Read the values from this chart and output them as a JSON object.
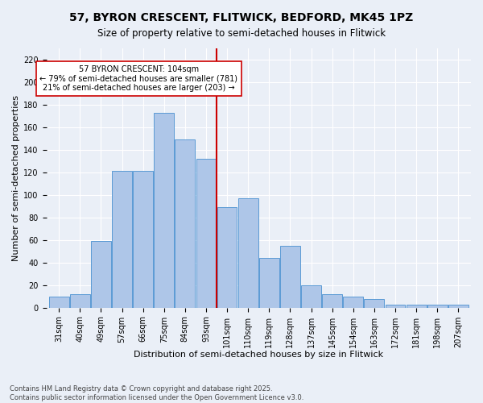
{
  "title": "57, BYRON CRESCENT, FLITWICK, BEDFORD, MK45 1PZ",
  "subtitle": "Size of property relative to semi-detached houses in Flitwick",
  "xlabel": "Distribution of semi-detached houses by size in Flitwick",
  "ylabel": "Number of semi-detached properties",
  "categories": [
    "31sqm",
    "40sqm",
    "49sqm",
    "57sqm",
    "66sqm",
    "75sqm",
    "84sqm",
    "93sqm",
    "101sqm",
    "110sqm",
    "119sqm",
    "128sqm",
    "137sqm",
    "145sqm",
    "154sqm",
    "163sqm",
    "172sqm",
    "181sqm",
    "198sqm",
    "207sqm"
  ],
  "values": [
    10,
    12,
    59,
    121,
    121,
    173,
    149,
    132,
    89,
    97,
    44,
    55,
    20,
    12,
    10,
    8,
    3,
    3,
    3,
    3
  ],
  "bar_color": "#aec6e8",
  "bar_edge_color": "#5b9bd5",
  "marker_color": "#cc0000",
  "marker_index": 8,
  "annotation_text": "57 BYRON CRESCENT: 104sqm\n← 79% of semi-detached houses are smaller (781)\n21% of semi-detached houses are larger (203) →",
  "annotation_box_color": "#ffffff",
  "annotation_box_edge_color": "#cc0000",
  "ylim": [
    0,
    230
  ],
  "yticks": [
    0,
    20,
    40,
    60,
    80,
    100,
    120,
    140,
    160,
    180,
    200,
    220
  ],
  "footer_text": "Contains HM Land Registry data © Crown copyright and database right 2025.\nContains public sector information licensed under the Open Government Licence v3.0.",
  "background_color": "#eaeff7",
  "title_fontsize": 10,
  "subtitle_fontsize": 8.5,
  "axis_label_fontsize": 8,
  "tick_fontsize": 7,
  "annotation_fontsize": 7,
  "footer_fontsize": 6
}
